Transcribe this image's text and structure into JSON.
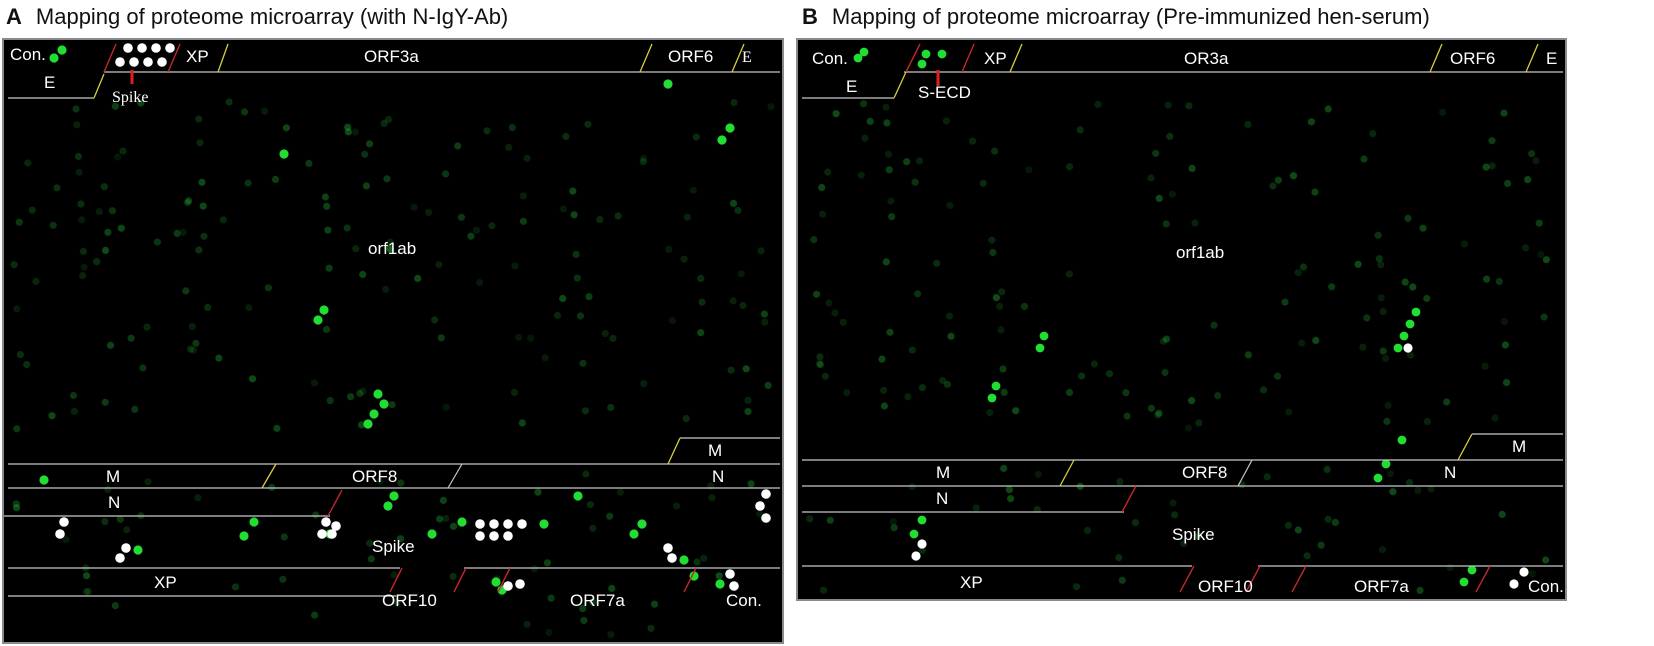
{
  "panels": {
    "a": {
      "letter": "A",
      "title": "Mapping of proteome microarray (with N-IgY-Ab)",
      "labels": {
        "con_top": "Con.",
        "xp_top": "XP",
        "orf3a": "ORF3a",
        "orf6": "ORF6",
        "e_top_right": "E",
        "e_left": "E",
        "spike_marker": "Spike",
        "orf1ab": "orf1ab",
        "m_right": "M",
        "m_row": "M",
        "orf8": "ORF8",
        "n_right": "N",
        "n_row": "N",
        "spike_row": "Spike",
        "xp_bottom": "XP",
        "orf10": "ORF10",
        "orf7a": "ORF7a",
        "con_bottom": "Con."
      }
    },
    "b": {
      "letter": "B",
      "title": "Mapping of proteome microarray (Pre-immunized hen-serum)",
      "labels": {
        "con_top": "Con.",
        "xp_top": "XP",
        "or3a": "OR3a",
        "orf6": "ORF6",
        "e_top_right": "E",
        "e_left": "E",
        "secd_marker": "S-ECD",
        "orf1ab": "orf1ab",
        "m_right": "M",
        "m_row": "M",
        "orf8": "ORF8",
        "n_right": "N",
        "n_row": "N",
        "spike_row": "Spike",
        "xp_bottom": "XP",
        "orf10": "ORF10",
        "orf7a": "ORF7a",
        "con_bottom": "Con."
      }
    }
  },
  "colors": {
    "background": "#000000",
    "spot_green": "#22dd33",
    "spot_white": "#ffffff",
    "divider_yellow": "#d8cf3a",
    "divider_red": "#c0282c",
    "grid_line": "#c8c8c8"
  }
}
